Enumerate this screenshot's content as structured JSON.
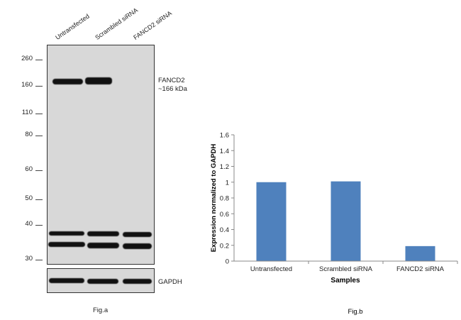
{
  "fig_a": {
    "lanes": [
      "Untransfected",
      "Scrambled siRNA",
      "FANCD2 siRNA"
    ],
    "mw_markers": [
      "260",
      "160",
      "110",
      "80",
      "60",
      "50",
      "40",
      "30"
    ],
    "target_label_line1": "FANCD2",
    "target_label_line2": "~166 kDa",
    "loading_label": "GAPDH",
    "caption": "Fig.a"
  },
  "chart_data": {
    "type": "bar",
    "categories": [
      "Untransfected",
      "Scrambled siRNA",
      "FANCD2 siRNA"
    ],
    "values": [
      1.0,
      1.01,
      0.19
    ],
    "ylabel": "Expression normalized to GAPDH",
    "xlabel": "Samples",
    "ylim": [
      0,
      1.6
    ],
    "yticks": [
      "0",
      "0.2",
      "0.4",
      "0.6",
      "0.8",
      "1",
      "1.2",
      "1.4",
      "1.6"
    ],
    "bar_color": "#4F81BD",
    "caption": "Fig.b"
  }
}
